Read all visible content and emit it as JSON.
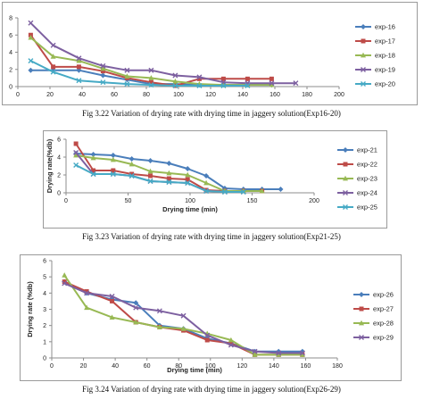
{
  "chart_data": [
    {
      "type": "line",
      "title": "",
      "xlabel": "",
      "ylabel": "",
      "xlim": [
        0,
        200
      ],
      "ylim": [
        0,
        8
      ],
      "xticks": [
        0,
        20,
        40,
        60,
        80,
        100,
        120,
        140,
        160,
        180,
        200
      ],
      "yticks": [
        0,
        2,
        4,
        6,
        8
      ],
      "grid": false,
      "legend": "right",
      "caption": "Fig 3.22 Variation of drying rate with drying time in jaggery solution(Exp16-20)",
      "series": [
        {
          "name": "exp-16",
          "color": "#4a7ebb",
          "marker": "diamond",
          "points": [
            [
              8,
              1.9
            ],
            [
              22,
              1.9
            ],
            [
              38,
              1.9
            ],
            [
              53,
              1.3
            ],
            [
              68,
              0.8
            ],
            [
              83,
              0.3
            ],
            [
              98,
              0.3
            ],
            [
              113,
              0.2
            ],
            [
              128,
              0.2
            ],
            [
              143,
              0.2
            ],
            [
              158,
              0.2
            ]
          ]
        },
        {
          "name": "exp-17",
          "color": "#be4b48",
          "marker": "square",
          "points": [
            [
              8,
              6.0
            ],
            [
              22,
              2.3
            ],
            [
              38,
              2.3
            ],
            [
              53,
              1.8
            ],
            [
              68,
              1.0
            ],
            [
              83,
              0.5
            ],
            [
              98,
              0.1
            ],
            [
              113,
              0.9
            ],
            [
              128,
              0.9
            ],
            [
              143,
              0.9
            ],
            [
              158,
              0.9
            ]
          ]
        },
        {
          "name": "exp-18",
          "color": "#98b954",
          "marker": "triangle",
          "points": [
            [
              8,
              5.7
            ],
            [
              22,
              3.5
            ],
            [
              38,
              3.0
            ],
            [
              53,
              2.1
            ],
            [
              68,
              1.2
            ],
            [
              83,
              1.0
            ],
            [
              98,
              0.6
            ],
            [
              113,
              0.3
            ],
            [
              128,
              0.2
            ],
            [
              143,
              0.2
            ],
            [
              158,
              0.2
            ]
          ]
        },
        {
          "name": "exp-19",
          "color": "#7d60a0",
          "marker": "x",
          "points": [
            [
              8,
              7.4
            ],
            [
              22,
              4.8
            ],
            [
              38,
              3.3
            ],
            [
              53,
              2.4
            ],
            [
              68,
              1.9
            ],
            [
              83,
              1.9
            ],
            [
              98,
              1.3
            ],
            [
              113,
              1.1
            ],
            [
              128,
              0.5
            ],
            [
              143,
              0.4
            ],
            [
              158,
              0.4
            ],
            [
              173,
              0.4
            ]
          ]
        },
        {
          "name": "exp-20",
          "color": "#46aac5",
          "marker": "x",
          "points": [
            [
              8,
              3.0
            ],
            [
              22,
              1.7
            ],
            [
              38,
              0.7
            ],
            [
              53,
              0.5
            ],
            [
              68,
              0.3
            ],
            [
              83,
              0.2
            ],
            [
              98,
              0.1
            ],
            [
              113,
              0.1
            ],
            [
              128,
              0.1
            ],
            [
              143,
              0.1
            ]
          ]
        }
      ]
    },
    {
      "type": "line",
      "title": "",
      "xlabel": "Drying time (min)",
      "ylabel": "Drying rate(%db)",
      "xlim": [
        0,
        200
      ],
      "ylim": [
        0,
        6
      ],
      "xticks": [
        0,
        50,
        100,
        150,
        200
      ],
      "yticks": [
        0,
        2,
        4,
        6
      ],
      "grid": false,
      "legend": "right",
      "caption": "Fig 3.23 Variation of drying rate with drying time in jaggery solution(Exp21-25)",
      "series": [
        {
          "name": "exp-21",
          "color": "#4a7ebb",
          "marker": "diamond",
          "points": [
            [
              8,
              4.4
            ],
            [
              22,
              4.3
            ],
            [
              38,
              4.2
            ],
            [
              53,
              3.8
            ],
            [
              68,
              3.6
            ],
            [
              83,
              3.3
            ],
            [
              98,
              2.7
            ],
            [
              113,
              1.9
            ],
            [
              128,
              0.5
            ],
            [
              143,
              0.4
            ],
            [
              158,
              0.4
            ],
            [
              173,
              0.4
            ]
          ]
        },
        {
          "name": "exp-22",
          "color": "#be4b48",
          "marker": "square",
          "points": [
            [
              8,
              5.5
            ],
            [
              22,
              2.5
            ],
            [
              38,
              2.5
            ],
            [
              53,
              2.1
            ],
            [
              68,
              1.9
            ],
            [
              83,
              1.6
            ],
            [
              98,
              1.5
            ],
            [
              113,
              0.3
            ],
            [
              128,
              0.2
            ],
            [
              143,
              0.2
            ],
            [
              158,
              0.2
            ]
          ]
        },
        {
          "name": "exp-23",
          "color": "#98b954",
          "marker": "triangle",
          "points": [
            [
              8,
              4.2
            ],
            [
              22,
              3.9
            ],
            [
              38,
              3.7
            ],
            [
              53,
              3.2
            ],
            [
              68,
              2.4
            ],
            [
              83,
              2.2
            ],
            [
              98,
              2.0
            ],
            [
              113,
              1.1
            ],
            [
              128,
              0.2
            ],
            [
              143,
              0.2
            ],
            [
              158,
              0.2
            ]
          ]
        },
        {
          "name": "exp-24",
          "color": "#7d60a0",
          "marker": "x",
          "points": [
            [
              8,
              4.5
            ],
            [
              22,
              2.1
            ],
            [
              38,
              2.1
            ],
            [
              53,
              1.9
            ],
            [
              68,
              1.3
            ],
            [
              83,
              1.2
            ],
            [
              98,
              1.1
            ],
            [
              113,
              0.2
            ],
            [
              128,
              0.1
            ],
            [
              143,
              0.1
            ]
          ]
        },
        {
          "name": "exp-25",
          "color": "#46aac5",
          "marker": "x",
          "points": [
            [
              8,
              3.1
            ],
            [
              22,
              2.1
            ],
            [
              38,
              2.1
            ],
            [
              53,
              1.9
            ],
            [
              68,
              1.3
            ],
            [
              83,
              1.2
            ],
            [
              98,
              1.1
            ],
            [
              113,
              0.2
            ],
            [
              128,
              0.1
            ],
            [
              143,
              0.1
            ]
          ]
        }
      ]
    },
    {
      "type": "line",
      "title": "",
      "xlabel": "Drying time (min)",
      "ylabel": "Drying rate (%db)",
      "xlim": [
        0,
        180
      ],
      "ylim": [
        0,
        6
      ],
      "xticks": [
        0,
        20,
        40,
        60,
        80,
        100,
        120,
        140,
        160,
        180
      ],
      "yticks": [
        0,
        1,
        2,
        3,
        4,
        5,
        6
      ],
      "grid": false,
      "legend": "right",
      "caption": "Fig 3.24 Variation of drying rate with drying time in jaggery solution(Exp26-29)",
      "series": [
        {
          "name": "exp-26",
          "color": "#4a7ebb",
          "marker": "diamond",
          "points": [
            [
              8,
              4.7
            ],
            [
              22,
              4.0
            ],
            [
              38,
              3.6
            ],
            [
              53,
              3.4
            ],
            [
              68,
              2.0
            ],
            [
              83,
              1.8
            ],
            [
              98,
              1.2
            ],
            [
              113,
              0.9
            ],
            [
              128,
              0.4
            ],
            [
              143,
              0.4
            ],
            [
              158,
              0.4
            ]
          ]
        },
        {
          "name": "exp-27",
          "color": "#be4b48",
          "marker": "square",
          "points": [
            [
              8,
              4.7
            ],
            [
              22,
              4.1
            ],
            [
              38,
              3.5
            ],
            [
              53,
              2.2
            ],
            [
              68,
              1.9
            ],
            [
              83,
              1.7
            ],
            [
              98,
              1.1
            ],
            [
              113,
              0.9
            ],
            [
              128,
              0.2
            ],
            [
              143,
              0.2
            ],
            [
              158,
              0.2
            ]
          ]
        },
        {
          "name": "exp-28",
          "color": "#98b954",
          "marker": "triangle",
          "points": [
            [
              8,
              5.1
            ],
            [
              22,
              3.1
            ],
            [
              38,
              2.5
            ],
            [
              53,
              2.2
            ],
            [
              68,
              1.9
            ],
            [
              83,
              1.8
            ],
            [
              98,
              1.5
            ],
            [
              113,
              1.1
            ],
            [
              128,
              0.2
            ],
            [
              143,
              0.2
            ],
            [
              158,
              0.2
            ]
          ]
        },
        {
          "name": "exp-29",
          "color": "#7d60a0",
          "marker": "x",
          "points": [
            [
              8,
              4.6
            ],
            [
              22,
              4.0
            ],
            [
              38,
              3.8
            ],
            [
              53,
              3.1
            ],
            [
              68,
              2.9
            ],
            [
              83,
              2.6
            ],
            [
              98,
              1.4
            ],
            [
              113,
              0.8
            ],
            [
              128,
              0.4
            ],
            [
              143,
              0.3
            ],
            [
              158,
              0.3
            ]
          ]
        }
      ]
    }
  ]
}
